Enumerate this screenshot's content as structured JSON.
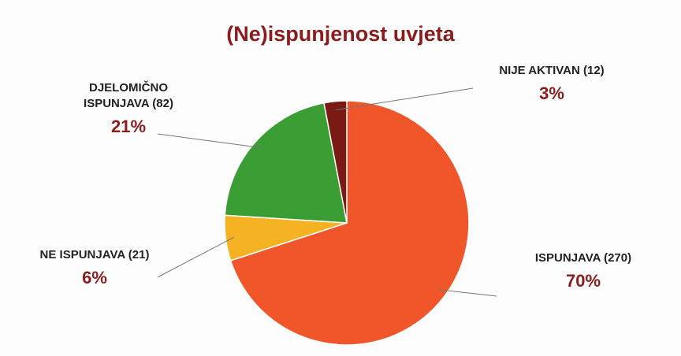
{
  "chart_data": {
    "type": "pie",
    "title": "(Ne)ispunjenost uvjeta",
    "categories": [
      "ISPUNJAVA (270)",
      "NE ISPUNJAVA (21)",
      "DJELOMIČNO ISPUNJAVA (82)",
      "NIJE AKTIVAN (12)"
    ],
    "values": [
      70,
      6,
      21,
      3
    ],
    "value_labels": [
      "70%",
      "6%",
      "21%",
      "3%"
    ],
    "colors": [
      "#f0562a",
      "#f5b324",
      "#3a9e34",
      "#7a1a14"
    ]
  }
}
